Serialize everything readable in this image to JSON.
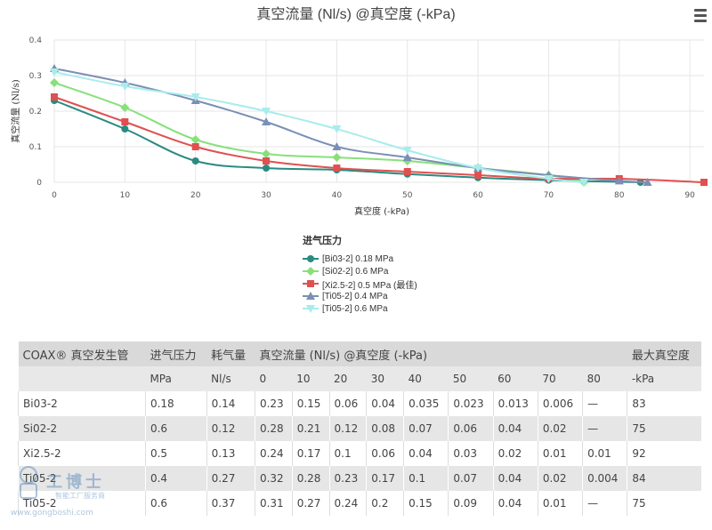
{
  "chart_data": {
    "type": "line",
    "title": "真空流量 (Nl/s) @真空度 (-kPa)",
    "xlabel": "真空度 (-kPa)",
    "ylabel": "真空流量 (Nl/s)",
    "xlim": [
      0,
      92
    ],
    "ylim": [
      0,
      0.4
    ],
    "xticks": [
      0,
      10,
      20,
      30,
      40,
      50,
      60,
      70,
      80,
      90
    ],
    "yticks": [
      0,
      0.1,
      0.2,
      0.3,
      0.4
    ],
    "legend_title": "进气压力",
    "legend_position": "bottom-center",
    "grid": true,
    "series": [
      {
        "name": "[Bi03-2] 0.18 MPa",
        "color": "#2a8a80",
        "marker": "circle",
        "x": [
          0,
          10,
          20,
          30,
          40,
          50,
          60,
          70,
          83
        ],
        "y": [
          0.23,
          0.15,
          0.06,
          0.04,
          0.035,
          0.023,
          0.013,
          0.006,
          0
        ]
      },
      {
        "name": "[Si02-2] 0.6 MPa",
        "color": "#88e07a",
        "marker": "diamond",
        "x": [
          0,
          10,
          20,
          30,
          40,
          50,
          60,
          70,
          75
        ],
        "y": [
          0.28,
          0.21,
          0.12,
          0.08,
          0.07,
          0.06,
          0.04,
          0.02,
          0
        ]
      },
      {
        "name": "[Xi2.5-2] 0.5 MPa (最佳)",
        "color": "#e05050",
        "marker": "square",
        "x": [
          0,
          10,
          20,
          30,
          40,
          50,
          60,
          70,
          80,
          92
        ],
        "y": [
          0.24,
          0.17,
          0.1,
          0.06,
          0.04,
          0.03,
          0.02,
          0.01,
          0.01,
          0
        ]
      },
      {
        "name": "[Ti05-2] 0.4 MPa",
        "color": "#7b8fb5",
        "marker": "triangle",
        "x": [
          0,
          10,
          20,
          30,
          40,
          50,
          60,
          70,
          80,
          84
        ],
        "y": [
          0.32,
          0.28,
          0.23,
          0.17,
          0.1,
          0.07,
          0.04,
          0.02,
          0.004,
          0
        ]
      },
      {
        "name": "[Ti05-2] 0.6 MPa",
        "color": "#a8ecec",
        "marker": "triangle-down",
        "x": [
          0,
          10,
          20,
          30,
          40,
          50,
          60,
          70,
          75
        ],
        "y": [
          0.31,
          0.27,
          0.24,
          0.2,
          0.15,
          0.09,
          0.04,
          0.01,
          0
        ]
      }
    ]
  },
  "table": {
    "headers": [
      "COAX® 真空发生管",
      "进气压力",
      "耗气量",
      "真空流量 (Nl/s) @真空度 (-kPa)",
      "最大真空度"
    ],
    "subheaders": [
      "",
      "MPa",
      "Nl/s",
      "0",
      "10",
      "20",
      "30",
      "40",
      "50",
      "60",
      "70",
      "80",
      "-kPa"
    ],
    "rows": [
      [
        "Bi03-2",
        "0.18",
        "0.14",
        "0.23",
        "0.15",
        "0.06",
        "0.04",
        "0.035",
        "0.023",
        "0.013",
        "0.006",
        "—",
        "83"
      ],
      [
        "Si02-2",
        "0.6",
        "0.12",
        "0.28",
        "0.21",
        "0.12",
        "0.08",
        "0.07",
        "0.06",
        "0.04",
        "0.02",
        "—",
        "75"
      ],
      [
        "Xi2.5-2",
        "0.5",
        "0.13",
        "0.24",
        "0.17",
        "0.1",
        "0.06",
        "0.04",
        "0.03",
        "0.02",
        "0.01",
        "0.01",
        "92"
      ],
      [
        "Ti05-2",
        "0.4",
        "0.27",
        "0.32",
        "0.28",
        "0.23",
        "0.17",
        "0.1",
        "0.07",
        "0.04",
        "0.02",
        "0.004",
        "84"
      ],
      [
        "Ti05-2",
        "0.6",
        "0.37",
        "0.31",
        "0.27",
        "0.24",
        "0.2",
        "0.15",
        "0.09",
        "0.04",
        "0.01",
        "—",
        "75"
      ]
    ]
  },
  "watermark": {
    "name": "工博士",
    "tagline": "智能工厂服务商",
    "url": "www.gongboshi.com"
  }
}
